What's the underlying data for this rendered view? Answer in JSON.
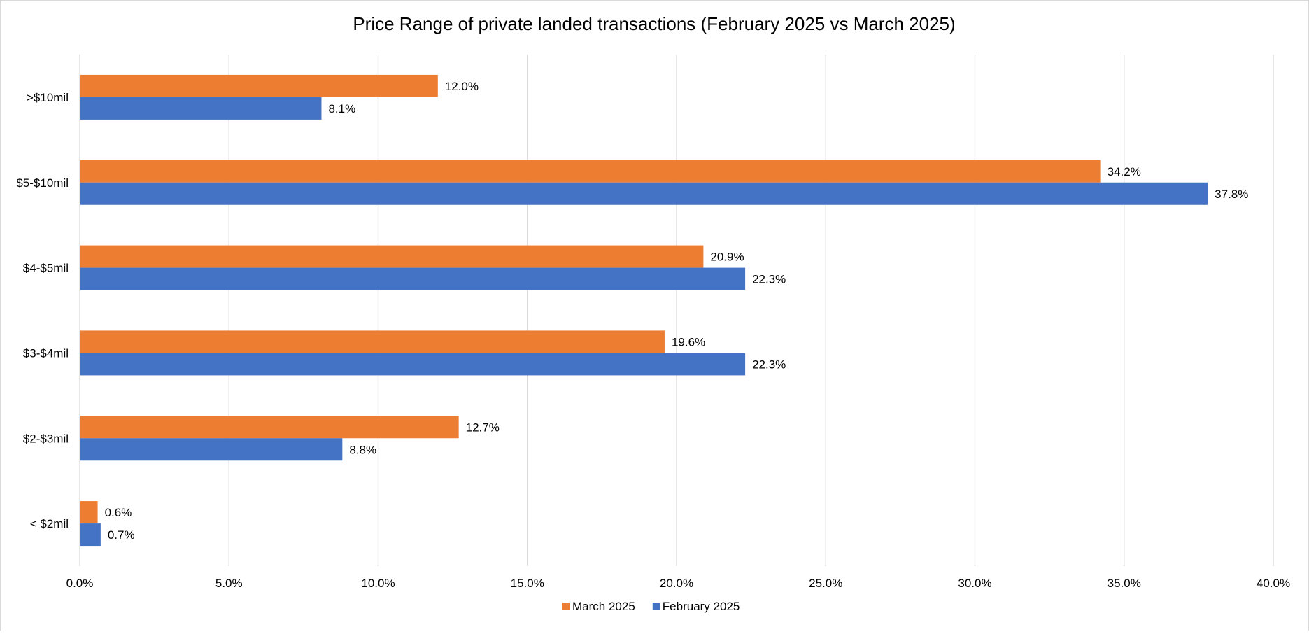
{
  "chart_data": {
    "type": "bar",
    "orientation": "horizontal",
    "title": "Price Range of private landed transactions (February 2025 vs March 2025)",
    "xlabel": "",
    "ylabel": "",
    "categories": [
      "< $2mil",
      "$2-$3mil",
      "$3-$4mil",
      "$4-$5mil",
      "$5-$10mil",
      ">$10mil"
    ],
    "series": [
      {
        "name": "March 2025",
        "color": "#ED7D31",
        "values": [
          0.6,
          12.7,
          19.6,
          20.9,
          34.2,
          12.0
        ],
        "labels": [
          "0.6%",
          "12.7%",
          "19.6%",
          "20.9%",
          "34.2%",
          "12.0%"
        ]
      },
      {
        "name": "February 2025",
        "color": "#4472C4",
        "values": [
          0.7,
          8.8,
          22.3,
          22.3,
          37.8,
          8.1
        ],
        "labels": [
          "0.7%",
          "8.8%",
          "22.3%",
          "22.3%",
          "37.8%",
          "8.1%"
        ]
      }
    ],
    "xlim": [
      0,
      40
    ],
    "xticks": [
      0,
      5,
      10,
      15,
      20,
      25,
      30,
      35,
      40
    ],
    "xtick_labels": [
      "0.0%",
      "5.0%",
      "10.0%",
      "15.0%",
      "20.0%",
      "25.0%",
      "30.0%",
      "35.0%",
      "40.0%"
    ],
    "grid": "vertical",
    "legend_position": "bottom"
  }
}
